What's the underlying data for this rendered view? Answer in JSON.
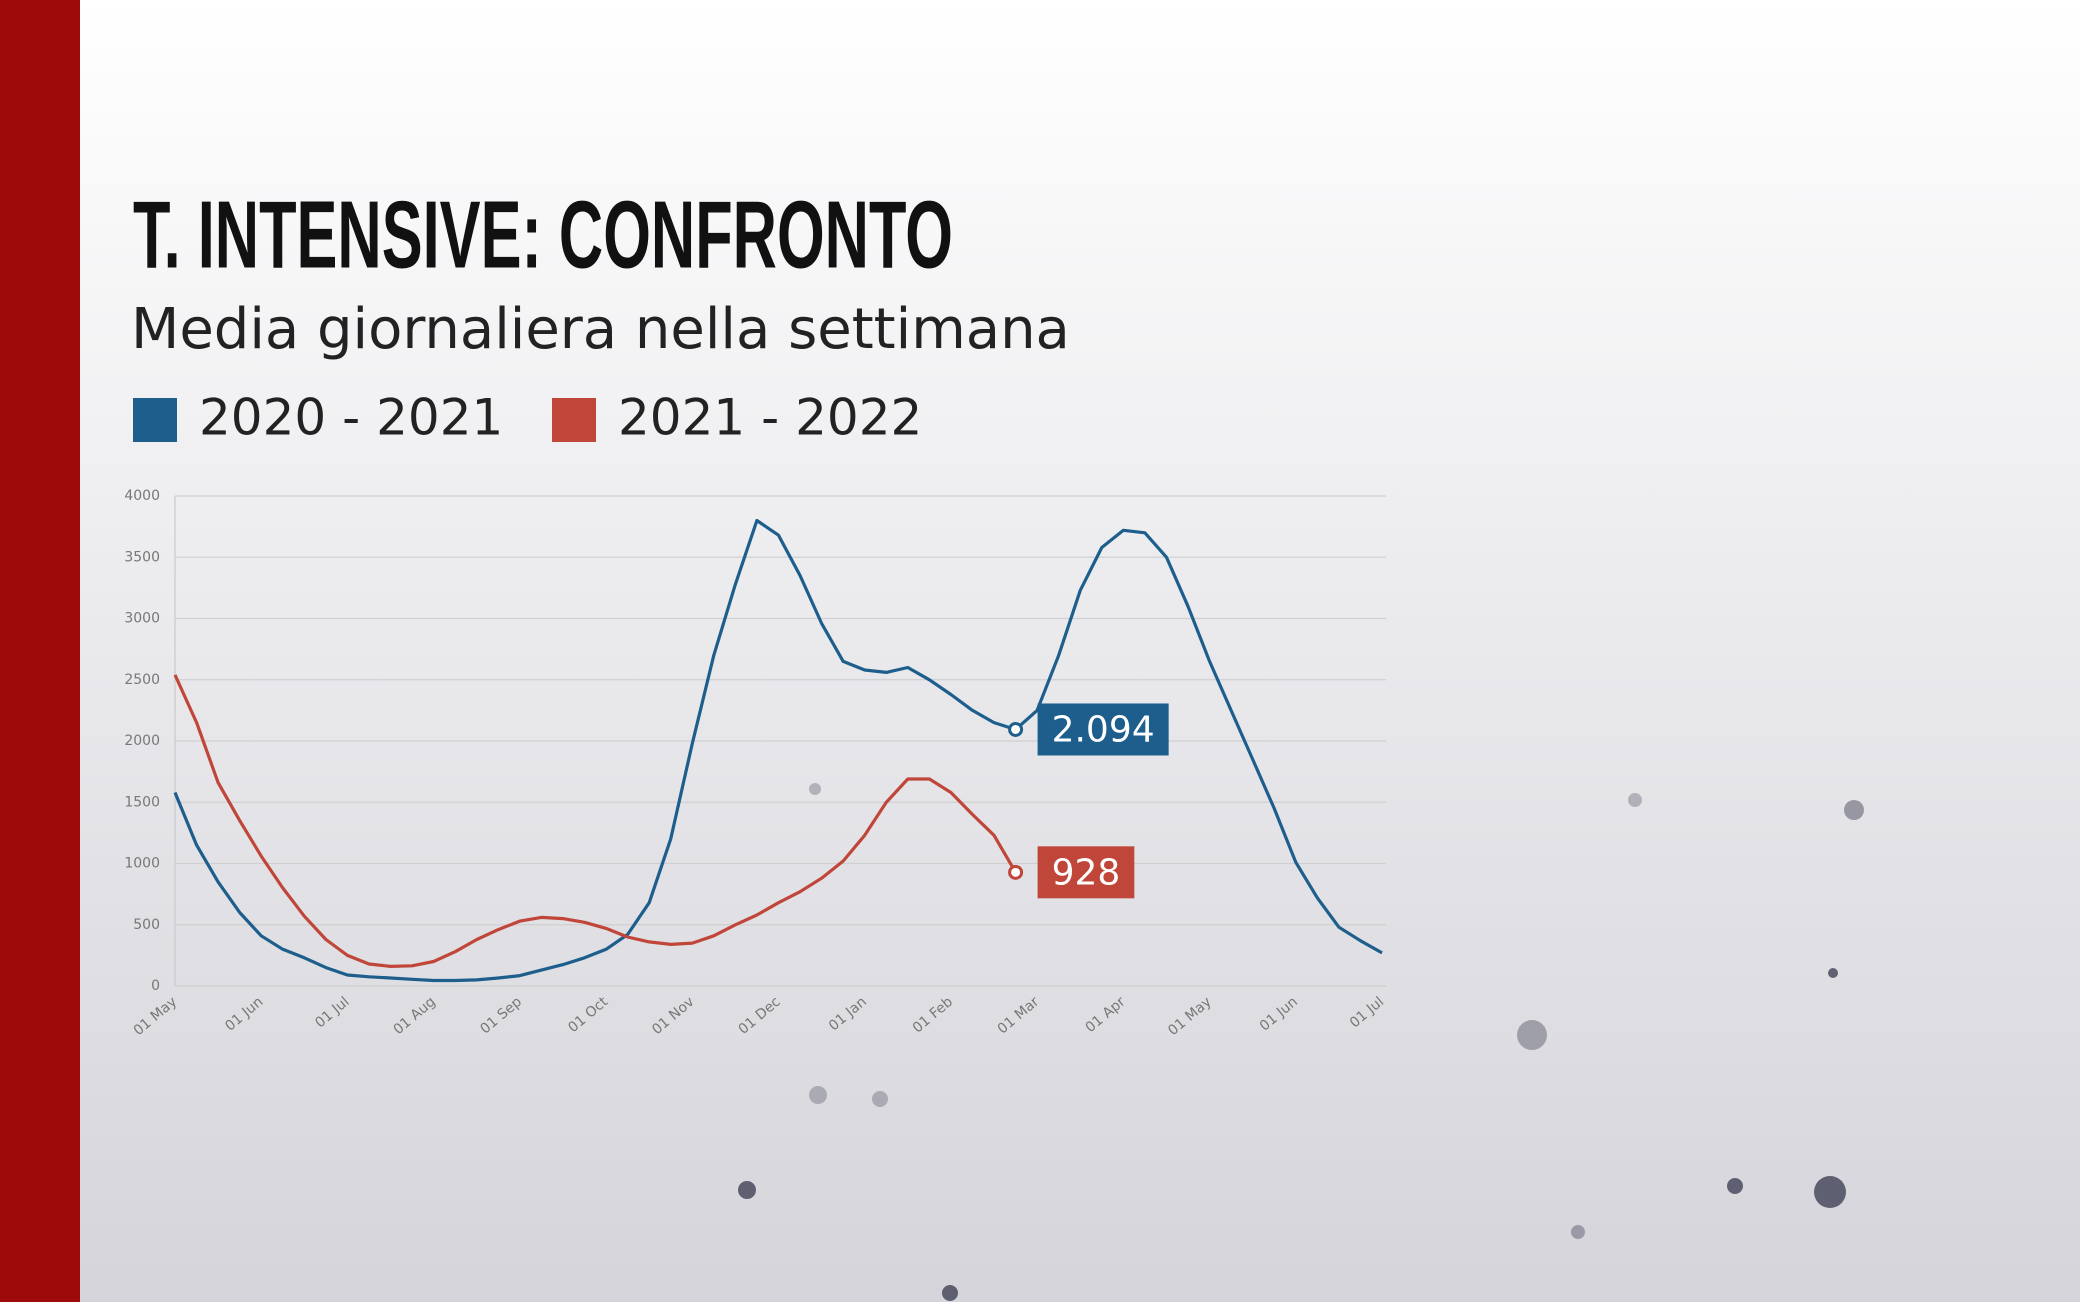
{
  "chart_data": {
    "type": "line",
    "title": "T. INTENSIVE: CONFRONTO",
    "subtitle": "Media giornaliera nella settimana",
    "categories": [
      "01 May",
      null,
      null,
      null,
      "01 Jun",
      null,
      null,
      null,
      "01 Jul",
      null,
      null,
      null,
      "01 Aug",
      null,
      null,
      null,
      "01 Sep",
      null,
      null,
      null,
      "01 Oct",
      null,
      null,
      null,
      "01 Nov",
      null,
      null,
      null,
      "01 Dec",
      null,
      null,
      null,
      "01 Jan",
      null,
      null,
      null,
      "01 Feb",
      null,
      null,
      null,
      "01 Mar",
      null,
      null,
      null,
      "01 Apr",
      null,
      null,
      null,
      "01 May",
      null,
      null,
      null,
      "01 Jun",
      null,
      null,
      null,
      "01 Jul"
    ],
    "series": [
      {
        "name": "2020 - 2021",
        "color": "#1d5e8c",
        "values": [
          1580,
          1150,
          850,
          600,
          410,
          300,
          230,
          150,
          90,
          75,
          65,
          55,
          45,
          45,
          50,
          65,
          85,
          130,
          175,
          230,
          300,
          420,
          680,
          1200,
          1980,
          2700,
          3280,
          3800,
          3680,
          3350,
          2960,
          2650,
          2580,
          2560,
          2600,
          2500,
          2380,
          2250,
          2150,
          2094,
          2250,
          2700,
          3230,
          3580,
          3720,
          3700,
          3500,
          3100,
          2650,
          2250,
          1850,
          1450,
          1010,
          720,
          480,
          370,
          270
        ],
        "value_labels": [
          null,
          null,
          null,
          null,
          null,
          null,
          null,
          null,
          null,
          null,
          null,
          null,
          null,
          null,
          null,
          null,
          null,
          null,
          null,
          null,
          null,
          null,
          null,
          null,
          null,
          null,
          null,
          null,
          null,
          null,
          null,
          null,
          null,
          null,
          null,
          null,
          null,
          null,
          null,
          "2.094",
          null,
          null,
          null,
          null,
          null,
          null,
          null,
          null,
          null,
          null,
          null,
          null,
          null,
          null,
          null,
          null,
          null
        ]
      },
      {
        "name": "2021 - 2022",
        "color": "#c0463a",
        "values": [
          2540,
          2150,
          1660,
          1350,
          1060,
          800,
          570,
          380,
          250,
          180,
          160,
          165,
          200,
          280,
          380,
          460,
          530,
          560,
          550,
          520,
          470,
          400,
          360,
          340,
          350,
          410,
          500,
          580,
          680,
          770,
          880,
          1020,
          1230,
          1500,
          1690,
          1690,
          1580,
          1400,
          1230,
          928,
          null,
          null,
          null,
          null,
          null,
          null,
          null,
          null,
          null,
          null,
          null,
          null,
          null,
          null,
          null,
          null,
          null
        ],
        "value_labels": [
          null,
          null,
          null,
          null,
          null,
          null,
          null,
          null,
          null,
          null,
          null,
          null,
          null,
          null,
          null,
          null,
          null,
          null,
          null,
          null,
          null,
          null,
          null,
          null,
          null,
          null,
          null,
          null,
          null,
          null,
          null,
          null,
          null,
          null,
          null,
          null,
          null,
          null,
          null,
          "928",
          null,
          null,
          null,
          null,
          null,
          null,
          null,
          null,
          null,
          null,
          null,
          null,
          null,
          null,
          null,
          null,
          null
        ]
      }
    ],
    "ylim": [
      0,
      4000
    ],
    "yticks": [
      0,
      500,
      1000,
      1500,
      2000,
      2500,
      3000,
      3500,
      4000
    ],
    "grid": true
  }
}
